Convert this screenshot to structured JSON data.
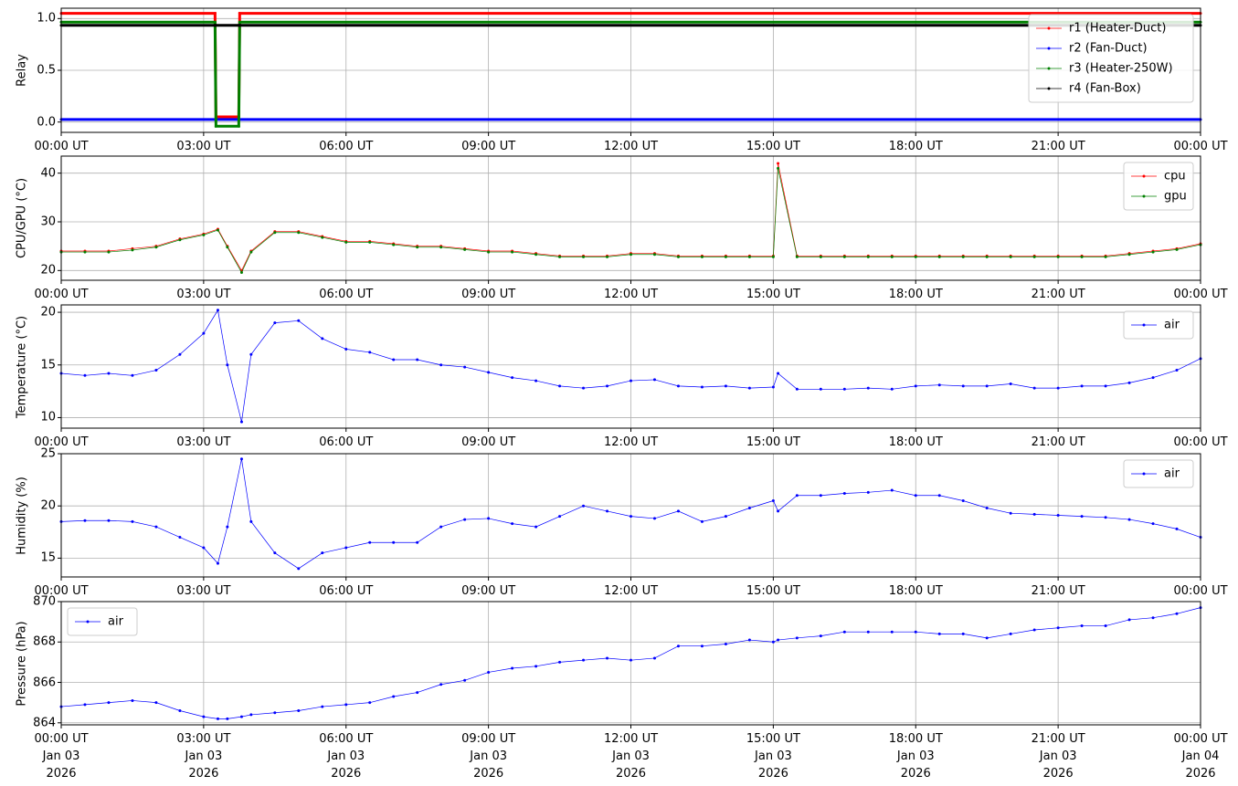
{
  "chart_data": [
    {
      "type": "line",
      "ylabel": "Relay",
      "legend": "upper right",
      "grid": true,
      "x": [
        0,
        3.24,
        3.26,
        3.74,
        3.76,
        24
      ],
      "xlim": [
        0,
        24
      ],
      "xticks": [
        {
          "value": 0,
          "label": "00:00 UT"
        },
        {
          "value": 3,
          "label": "03:00 UT"
        },
        {
          "value": 6,
          "label": "06:00 UT"
        },
        {
          "value": 9,
          "label": "09:00 UT"
        },
        {
          "value": 12,
          "label": "12:00 UT"
        },
        {
          "value": 15,
          "label": "15:00 UT"
        },
        {
          "value": 18,
          "label": "18:00 UT"
        },
        {
          "value": 21,
          "label": "21:00 UT"
        },
        {
          "value": 24,
          "label": "00:00 UT"
        }
      ],
      "ylim": [
        -0.1,
        1.1
      ],
      "yticks": [
        {
          "value": 0,
          "label": "0.0"
        },
        {
          "value": 0.5,
          "label": "0.5"
        },
        {
          "value": 1,
          "label": "1.0"
        }
      ],
      "series": [
        {
          "name": "r1 (Heater-Duct)",
          "color": "#ff0000",
          "values": [
            1.05,
            1.05,
            0.05,
            0.05,
            1.05,
            1.05
          ]
        },
        {
          "name": "r2 (Fan-Duct)",
          "color": "#0000ff",
          "values": [
            0.025,
            0.025,
            0.025,
            0.025,
            0.025,
            0.025
          ]
        },
        {
          "name": "r3 (Heater-250W)",
          "color": "#008000",
          "values": [
            0.965,
            0.965,
            -0.04,
            -0.04,
            0.965,
            0.965
          ]
        },
        {
          "name": "r4 (Fan-Box)",
          "color": "#000000",
          "values": [
            0.935,
            0.935,
            0.935,
            0.935,
            0.935,
            0.935
          ]
        }
      ]
    },
    {
      "type": "line",
      "ylabel": "CPU/GPU (°C)",
      "legend": "upper right",
      "grid": true,
      "x": [
        0,
        0.5,
        1,
        1.5,
        2,
        2.5,
        3,
        3.3,
        3.5,
        3.8,
        4,
        4.5,
        5,
        5.5,
        6,
        6.5,
        7,
        7.5,
        8,
        8.5,
        9,
        9.5,
        10,
        10.5,
        11,
        11.5,
        12,
        12.5,
        13,
        13.5,
        14,
        14.5,
        15,
        15.1,
        15.5,
        16,
        16.5,
        17,
        17.5,
        18,
        18.5,
        19,
        19.5,
        20,
        20.5,
        21,
        21.5,
        22,
        22.5,
        23,
        23.5,
        24
      ],
      "xlim": [
        0,
        24
      ],
      "xticks": [
        {
          "value": 0,
          "label": "00:00 UT"
        },
        {
          "value": 3,
          "label": "03:00 UT"
        },
        {
          "value": 6,
          "label": "06:00 UT"
        },
        {
          "value": 9,
          "label": "09:00 UT"
        },
        {
          "value": 12,
          "label": "12:00 UT"
        },
        {
          "value": 15,
          "label": "15:00 UT"
        },
        {
          "value": 18,
          "label": "18:00 UT"
        },
        {
          "value": 21,
          "label": "21:00 UT"
        },
        {
          "value": 24,
          "label": "00:00 UT"
        }
      ],
      "ylim": [
        18,
        43.5
      ],
      "yticks": [
        20,
        30,
        40
      ],
      "series": [
        {
          "name": "cpu",
          "color": "#ff0000",
          "values": [
            24,
            24,
            24,
            24.5,
            25,
            26.5,
            27.5,
            28.5,
            25,
            20,
            24,
            28,
            28,
            27,
            26,
            26,
            25.5,
            25,
            25,
            24.5,
            24,
            24,
            23.5,
            23,
            23,
            23,
            23.5,
            23.5,
            23,
            23,
            23,
            23,
            23,
            42,
            23,
            23,
            23,
            23,
            23,
            23,
            23,
            23,
            23,
            23,
            23,
            23,
            23,
            23,
            23.5,
            24,
            24.5,
            25.5
          ]
        },
        {
          "name": "gpu",
          "color": "#008000",
          "values": [
            23.8,
            23.8,
            23.8,
            24.2,
            24.8,
            26.3,
            27.3,
            28.3,
            24.8,
            19.6,
            23.8,
            27.8,
            27.8,
            26.8,
            25.8,
            25.8,
            25.3,
            24.8,
            24.8,
            24.3,
            23.8,
            23.8,
            23.3,
            22.8,
            22.8,
            22.8,
            23.3,
            23.3,
            22.8,
            22.8,
            22.8,
            22.8,
            22.8,
            41,
            22.8,
            22.8,
            22.8,
            22.8,
            22.8,
            22.8,
            22.8,
            22.8,
            22.8,
            22.8,
            22.8,
            22.8,
            22.8,
            22.8,
            23.3,
            23.8,
            24.3,
            25.3
          ]
        }
      ]
    },
    {
      "type": "line",
      "ylabel": "Temperature (°C)",
      "legend": "upper right",
      "grid": true,
      "x": [
        0,
        0.5,
        1,
        1.5,
        2,
        2.5,
        3,
        3.3,
        3.5,
        3.8,
        4,
        4.5,
        5,
        5.5,
        6,
        6.5,
        7,
        7.5,
        8,
        8.5,
        9,
        9.5,
        10,
        10.5,
        11,
        11.5,
        12,
        12.5,
        13,
        13.5,
        14,
        14.5,
        15,
        15.1,
        15.5,
        16,
        16.5,
        17,
        17.5,
        18,
        18.5,
        19,
        19.5,
        20,
        20.5,
        21,
        21.5,
        22,
        22.5,
        23,
        23.5,
        24
      ],
      "xlim": [
        0,
        24
      ],
      "xticks": [
        {
          "value": 0,
          "label": "00:00 UT"
        },
        {
          "value": 3,
          "label": "03:00 UT"
        },
        {
          "value": 6,
          "label": "06:00 UT"
        },
        {
          "value": 9,
          "label": "09:00 UT"
        },
        {
          "value": 12,
          "label": "12:00 UT"
        },
        {
          "value": 15,
          "label": "15:00 UT"
        },
        {
          "value": 18,
          "label": "18:00 UT"
        },
        {
          "value": 21,
          "label": "21:00 UT"
        },
        {
          "value": 24,
          "label": "00:00 UT"
        }
      ],
      "ylim": [
        9,
        20.7
      ],
      "yticks": [
        10,
        15,
        20
      ],
      "series": [
        {
          "name": "air",
          "color": "#0000ff",
          "values": [
            14.2,
            14,
            14.2,
            14,
            14.5,
            16,
            18,
            20.2,
            15,
            9.6,
            16,
            19,
            19.2,
            17.5,
            16.5,
            16.2,
            15.5,
            15.5,
            15,
            14.8,
            14.3,
            13.8,
            13.5,
            13,
            12.8,
            13,
            13.5,
            13.6,
            13,
            12.9,
            13,
            12.8,
            12.9,
            14.2,
            12.7,
            12.7,
            12.7,
            12.8,
            12.7,
            13,
            13.1,
            13,
            13,
            13.2,
            12.8,
            12.8,
            13,
            13,
            13.3,
            13.8,
            14.5,
            15.6
          ]
        }
      ]
    },
    {
      "type": "line",
      "ylabel": "Humidity (%)",
      "legend": "upper right",
      "grid": true,
      "x": [
        0,
        0.5,
        1,
        1.5,
        2,
        2.5,
        3,
        3.3,
        3.5,
        3.8,
        4,
        4.5,
        5,
        5.5,
        6,
        6.5,
        7,
        7.5,
        8,
        8.5,
        9,
        9.5,
        10,
        10.5,
        11,
        11.5,
        12,
        12.5,
        13,
        13.5,
        14,
        14.5,
        15,
        15.1,
        15.5,
        16,
        16.5,
        17,
        17.5,
        18,
        18.5,
        19,
        19.5,
        20,
        20.5,
        21,
        21.5,
        22,
        22.5,
        23,
        23.5,
        24
      ],
      "xlim": [
        0,
        24
      ],
      "xticks": [
        {
          "value": 0,
          "label": "00:00 UT"
        },
        {
          "value": 3,
          "label": "03:00 UT"
        },
        {
          "value": 6,
          "label": "06:00 UT"
        },
        {
          "value": 9,
          "label": "09:00 UT"
        },
        {
          "value": 12,
          "label": "12:00 UT"
        },
        {
          "value": 15,
          "label": "15:00 UT"
        },
        {
          "value": 18,
          "label": "18:00 UT"
        },
        {
          "value": 21,
          "label": "21:00 UT"
        },
        {
          "value": 24,
          "label": "00:00 UT"
        }
      ],
      "ylim": [
        13.2,
        25
      ],
      "yticks": [
        15,
        20,
        25
      ],
      "series": [
        {
          "name": "air",
          "color": "#0000ff",
          "values": [
            18.5,
            18.6,
            18.6,
            18.5,
            18,
            17,
            16,
            14.5,
            18,
            24.5,
            18.5,
            15.5,
            14,
            15.5,
            16,
            16.5,
            16.5,
            16.5,
            18,
            18.7,
            18.8,
            18.3,
            18,
            19,
            20,
            19.5,
            19,
            18.8,
            19.5,
            18.5,
            19,
            19.8,
            20.5,
            19.5,
            21,
            21,
            21.2,
            21.3,
            21.5,
            21,
            21,
            20.5,
            19.8,
            19.3,
            19.2,
            19.1,
            19,
            18.9,
            18.7,
            18.3,
            17.8,
            17
          ]
        }
      ]
    },
    {
      "type": "line",
      "ylabel": "Pressure (hPa)",
      "legend": "upper left",
      "grid": true,
      "x": [
        0,
        0.5,
        1,
        1.5,
        2,
        2.5,
        3,
        3.3,
        3.5,
        3.8,
        4,
        4.5,
        5,
        5.5,
        6,
        6.5,
        7,
        7.5,
        8,
        8.5,
        9,
        9.5,
        10,
        10.5,
        11,
        11.5,
        12,
        12.5,
        13,
        13.5,
        14,
        14.5,
        15,
        15.1,
        15.5,
        16,
        16.5,
        17,
        17.5,
        18,
        18.5,
        19,
        19.5,
        20,
        20.5,
        21,
        21.5,
        22,
        22.5,
        23,
        23.5,
        24
      ],
      "xlim": [
        0,
        24
      ],
      "xticks": [
        {
          "value": 0,
          "label": "00:00 UT\nJan 03\n2026"
        },
        {
          "value": 3,
          "label": "03:00 UT\nJan 03\n2026"
        },
        {
          "value": 6,
          "label": "06:00 UT\nJan 03\n2026"
        },
        {
          "value": 9,
          "label": "09:00 UT\nJan 03\n2026"
        },
        {
          "value": 12,
          "label": "12:00 UT\nJan 03\n2026"
        },
        {
          "value": 15,
          "label": "15:00 UT\nJan 03\n2026"
        },
        {
          "value": 18,
          "label": "18:00 UT\nJan 03\n2026"
        },
        {
          "value": 21,
          "label": "21:00 UT\nJan 03\n2026"
        },
        {
          "value": 24,
          "label": "00:00 UT\nJan 04\n2026"
        }
      ],
      "ylim": [
        863.9,
        870
      ],
      "yticks": [
        864,
        866,
        868,
        870
      ],
      "series": [
        {
          "name": "air",
          "color": "#0000ff",
          "values": [
            864.8,
            864.9,
            865,
            865.1,
            865,
            864.6,
            864.3,
            864.2,
            864.2,
            864.3,
            864.4,
            864.5,
            864.6,
            864.8,
            864.9,
            865,
            865.3,
            865.5,
            865.9,
            866.1,
            866.5,
            866.7,
            866.8,
            867,
            867.1,
            867.2,
            867.1,
            867.2,
            867.8,
            867.8,
            867.9,
            868.1,
            868,
            868.1,
            868.2,
            868.3,
            868.5,
            868.5,
            868.5,
            868.5,
            868.4,
            868.4,
            868.2,
            868.4,
            868.6,
            868.7,
            868.8,
            868.8,
            869.1,
            869.2,
            869.4,
            869.7
          ]
        }
      ]
    }
  ]
}
